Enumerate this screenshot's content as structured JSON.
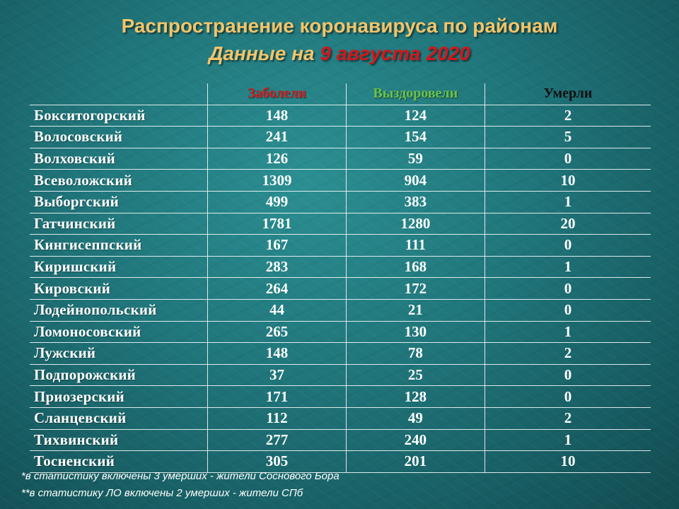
{
  "title": "Распространение коронавируса по районам",
  "subtitle": {
    "prefix": "Данные на ",
    "date": "9 августа 2020"
  },
  "colors": {
    "title": "#f2c46a",
    "date_accent": "#d3171b",
    "header_sick": "#d91d1d",
    "header_recovered": "#6cc24a",
    "header_died": "#111111",
    "background": "#1f7479"
  },
  "table": {
    "headers": [
      "",
      "Заболели",
      "Выздоровели",
      "Умерли"
    ],
    "rows": [
      [
        "Бокситогорский",
        "148",
        "124",
        "2"
      ],
      [
        "Волосовский",
        "241",
        "154",
        "5"
      ],
      [
        "Волховский",
        "126",
        "59",
        "0"
      ],
      [
        "Всеволожский",
        "1309",
        "904",
        "10"
      ],
      [
        "Выборгский",
        "499",
        "383",
        "1"
      ],
      [
        "Гатчинский",
        "1781",
        "1280",
        "20"
      ],
      [
        "Кингисеппский",
        "167",
        "111",
        "0"
      ],
      [
        "Киришский",
        "283",
        "168",
        "1"
      ],
      [
        "Кировский",
        "264",
        "172",
        "0"
      ],
      [
        "Лодейнопольский",
        "44",
        "21",
        "0"
      ],
      [
        "Ломоносовский",
        "265",
        "130",
        "1"
      ],
      [
        "Лужский",
        "148",
        "78",
        "2"
      ],
      [
        "Подпорожский",
        "37",
        "25",
        "0"
      ],
      [
        "Приозерский",
        "171",
        "128",
        "0"
      ],
      [
        "Сланцевский",
        "112",
        "49",
        "2"
      ],
      [
        "Тихвинский",
        "277",
        "240",
        "1"
      ],
      [
        "Тосненский",
        "305",
        "201",
        "10"
      ]
    ]
  },
  "notes": [
    "*в статистику включены 3 умерших - жители Соснового Бора",
    "**в статистику ЛО включены  2 умерших - жители СПб"
  ]
}
